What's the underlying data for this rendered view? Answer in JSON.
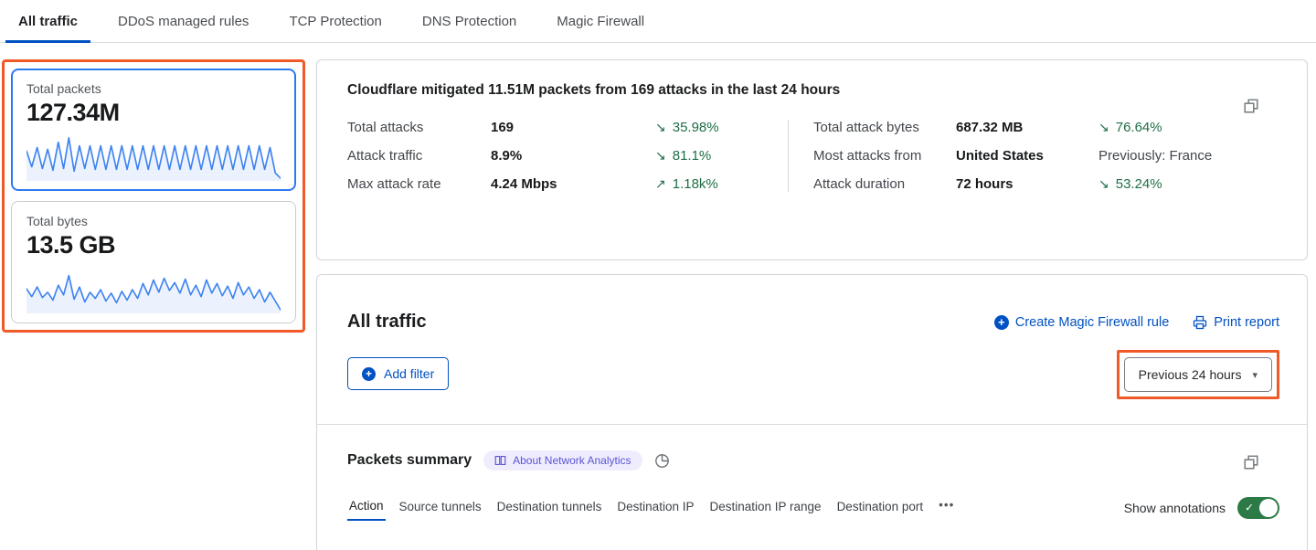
{
  "colors": {
    "accent_blue": "#0051c3",
    "selected_card_blue": "#2a7aef",
    "sparkline_blue": "#3d83f0",
    "delta_green": "#1e6e46",
    "highlight_orange": "#f05a28",
    "toggle_green": "#2c7a45",
    "badge_purple": "#5b54d4",
    "badge_bg": "#efedfd"
  },
  "top_tabs": [
    {
      "label": "All traffic"
    },
    {
      "label": "DDoS managed rules"
    },
    {
      "label": "TCP Protection"
    },
    {
      "label": "DNS Protection"
    },
    {
      "label": "Magic Firewall"
    }
  ],
  "sidebar": {
    "cards": [
      {
        "title": "Total packets",
        "value": "127.34M",
        "spark": [
          20,
          38,
          16,
          40,
          18,
          42,
          10,
          40,
          5,
          43,
          14,
          40,
          14,
          41,
          14,
          41,
          14,
          41,
          14,
          41,
          14,
          41,
          14,
          41,
          14,
          41,
          14,
          41,
          14,
          41,
          14,
          41,
          14,
          41,
          14,
          41,
          14,
          41,
          14,
          41,
          14,
          41,
          14,
          41,
          14,
          41,
          16,
          45,
          51
        ]
      },
      {
        "title": "Total bytes",
        "value": "13.5 GB",
        "spark": [
          26,
          35,
          24,
          36,
          30,
          39,
          22,
          33,
          11,
          38,
          24,
          41,
          30,
          37,
          27,
          40,
          31,
          42,
          29,
          39,
          27,
          37,
          20,
          33,
          16,
          30,
          14,
          28,
          19,
          31,
          15,
          33,
          22,
          35,
          16,
          31,
          20,
          34,
          23,
          37,
          19,
          33,
          24,
          37,
          27,
          41,
          30,
          40,
          50
        ]
      }
    ]
  },
  "summary": {
    "title": "Cloudflare mitigated 11.51M packets from 169 attacks in the last 24 hours",
    "left_stats": [
      {
        "label": "Total attacks",
        "value": "169",
        "arrow": "↘",
        "delta": "35.98%"
      },
      {
        "label": "Attack traffic",
        "value": "8.9%",
        "arrow": "↘",
        "delta": "81.1%"
      },
      {
        "label": "Max attack rate",
        "value": "4.24 Mbps",
        "arrow": "↗",
        "delta": "1.18k%"
      }
    ],
    "right_stats": [
      {
        "label": "Total attack bytes",
        "value": "687.32 MB",
        "arrow": "↘",
        "delta": "76.64%"
      },
      {
        "label": "Most attacks from",
        "value": "United States",
        "arrow": "",
        "delta": "Previously: France"
      },
      {
        "label": "Attack duration",
        "value": "72 hours",
        "arrow": "↘",
        "delta": "53.24%"
      }
    ]
  },
  "traffic_panel": {
    "title": "All traffic",
    "create_rule_label": "Create Magic Firewall rule",
    "print_label": "Print report",
    "add_filter_label": "Add filter",
    "plus_glyph": "+",
    "time_range_label": "Previous 24 hours",
    "caret_glyph": "▾"
  },
  "packets_summary": {
    "title": "Packets summary",
    "badge_label": "About Network Analytics",
    "tabs": [
      {
        "label": "Action",
        "active": true
      },
      {
        "label": "Source tunnels"
      },
      {
        "label": "Destination tunnels"
      },
      {
        "label": "Destination IP"
      },
      {
        "label": "Destination IP range"
      },
      {
        "label": "Destination port"
      }
    ],
    "more_label": "•••",
    "show_annotations_label": "Show annotations",
    "toggle_on": true,
    "check_glyph": "✓"
  },
  "icons": {
    "copy": "copy-icon (two overlapping squares)",
    "printer": "printer-icon",
    "plus_circle": "plus-circle-icon",
    "book": "book-icon",
    "pie": "pie-chart-icon",
    "chevron": "chevron-down-icon",
    "ellipsis": "ellipsis-icon"
  }
}
